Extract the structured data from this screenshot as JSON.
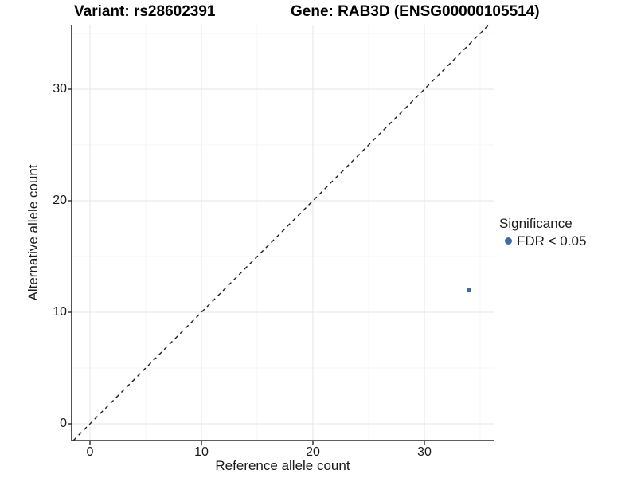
{
  "header": {
    "variant_title": "Variant: rs28602391",
    "gene_title": "Gene: RAB3D (ENSG00000105514)"
  },
  "chart_data": {
    "type": "scatter",
    "title": "Variant: rs28602391    Gene: RAB3D (ENSG00000105514)",
    "xlabel": "Reference allele count",
    "ylabel": "Alternative allele count",
    "x_ticks": [
      0,
      10,
      20,
      30
    ],
    "y_ticks": [
      0,
      10,
      20,
      30
    ],
    "minor_ticks": [
      5,
      15,
      25,
      35
    ],
    "xlim": [
      -1.6,
      36.2
    ],
    "ylim": [
      -1.6,
      36.2
    ],
    "grid": true,
    "series": [
      {
        "name": "FDR < 0.05",
        "color": "#3d6ba3",
        "points": [
          {
            "x": 34,
            "y": 12
          }
        ]
      }
    ],
    "reference_line": {
      "type": "identity y = x",
      "style": "dashed",
      "color": "#1a1a1a"
    },
    "legend": {
      "title": "Significance",
      "position": "right",
      "entries": [
        {
          "label": "FDR < 0.05",
          "color": "#3d6ba3",
          "marker": "circle"
        }
      ]
    }
  },
  "colors": {
    "point_blue": "#3d6ba3",
    "grid_major": "#e9e9e9",
    "grid_minor": "#f4f4f4",
    "axis_line": "#2a2a2a",
    "dashed_line": "#1a1a1a",
    "background": "#ffffff"
  }
}
